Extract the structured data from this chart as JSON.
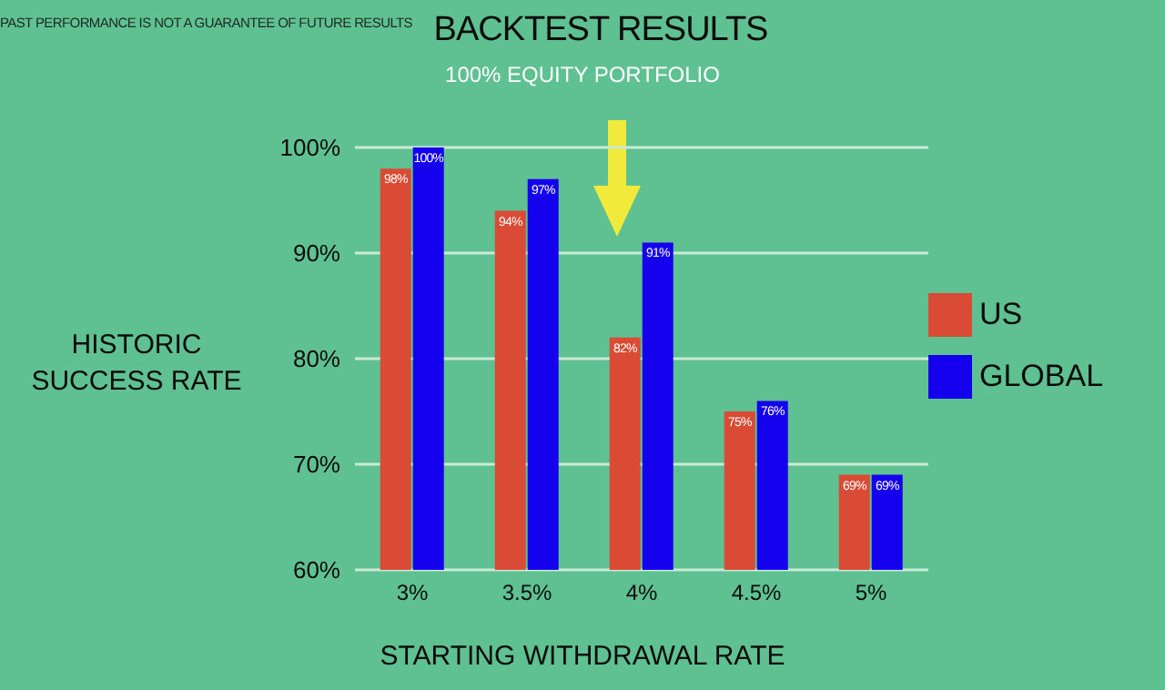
{
  "chart_data": {
    "type": "bar",
    "title": "BACKTEST RESULTS",
    "subtitle": "100% EQUITY PORTFOLIO",
    "xlabel": "STARTING WITHDRAWAL RATE",
    "ylabel": "HISTORIC SUCCESS RATE",
    "annotations": [
      "PAST PERFORMANCE IS NOT A GUARANTEE OF FUTURE RESULTS"
    ],
    "categories": [
      "3%",
      "3.5%",
      "4%",
      "4.5%",
      "5%"
    ],
    "series": [
      {
        "name": "US",
        "color": "#d94b35",
        "values": [
          98,
          94,
          82,
          75,
          69
        ],
        "value_labels": [
          "98%",
          "94%",
          "82%",
          "75%",
          "69%"
        ]
      },
      {
        "name": "GLOBAL",
        "color": "#1500ee",
        "values": [
          100,
          97,
          91,
          76,
          69
        ],
        "value_labels": [
          "100%",
          "97%",
          "91%",
          "76%",
          "69%"
        ]
      }
    ],
    "ylim": [
      60,
      100
    ],
    "yticks": [
      {
        "value": 60,
        "label": "60%"
      },
      {
        "value": 70,
        "label": "70%"
      },
      {
        "value": 80,
        "label": "80%"
      },
      {
        "value": 90,
        "label": "90%"
      },
      {
        "value": 100,
        "label": "100%"
      }
    ],
    "grid": "y",
    "legend": "right"
  }
}
